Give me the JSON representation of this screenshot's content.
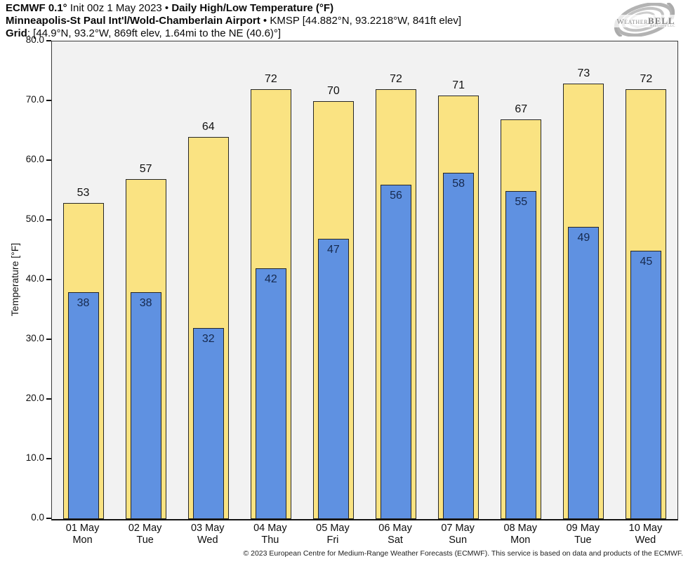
{
  "header": {
    "line1_bold1": "ECMWF 0.1°",
    "line1_reg": " Init 00z 1 May 2023 • ",
    "line1_bold2": "Daily High/Low Temperature (°F)",
    "line2_bold": "Minneapolis-St Paul Int'l/Wold-Chamberlain Airport",
    "line2_reg": " • KMSP [44.882°N, 93.2218°W, 841ft elev]",
    "line3_bold": "Grid",
    "line3_reg": ": [44.9°N, 93.2°W, 869ft elev, 1.64mi to the NE (40.6)°]"
  },
  "logo": {
    "word1": "Weather",
    "word2": "BELL",
    "sub": "Analytics LLC"
  },
  "chart_data": {
    "type": "bar",
    "categories": [
      "01 May",
      "02 May",
      "03 May",
      "04 May",
      "05 May",
      "06 May",
      "07 May",
      "08 May",
      "09 May",
      "10 May"
    ],
    "weekdays": [
      "Mon",
      "Tue",
      "Wed",
      "Thu",
      "Fri",
      "Sat",
      "Sun",
      "Mon",
      "Tue",
      "Wed"
    ],
    "series": [
      {
        "name": "High",
        "values": [
          53,
          57,
          64,
          72,
          70,
          72,
          71,
          67,
          73,
          72
        ],
        "color": "#FAE382"
      },
      {
        "name": "Low",
        "values": [
          38,
          38,
          32,
          42,
          47,
          56,
          58,
          55,
          49,
          45
        ],
        "color": "#5F91E1"
      }
    ],
    "ylabel": "Temperature [°F]",
    "ylim": [
      0,
      80
    ],
    "ytick_step": 10,
    "ytick_decimals": 1,
    "grid": false,
    "legend": "none",
    "plot_bg": "#f2f2f2",
    "bar_border": "#262626",
    "high_label_color": "#111111",
    "low_label_color": "#16294e"
  },
  "footer": {
    "copyright": "© 2023 European Centre for Medium-Range Weather Forecasts (ECMWF). This service is based on data and products of the ECMWF."
  }
}
